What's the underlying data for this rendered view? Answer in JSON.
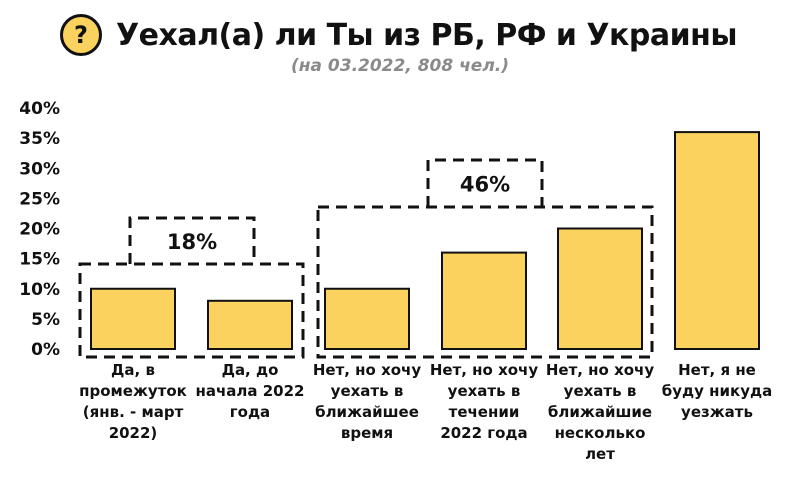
{
  "header": {
    "icon": "question-mark-icon",
    "icon_glyph": "?",
    "title": "Уехал(а) ли Ты из РБ, РФ и Украины",
    "subtitle": "(на 03.2022, 808 чел.)"
  },
  "colors": {
    "bar_fill": "#fcd25e",
    "bar_stroke": "#111111",
    "icon_fill": "#fcd25e",
    "subtitle": "#8a8a8a"
  },
  "chart_data": {
    "type": "bar",
    "title": "Уехал(а) ли Ты из РБ, РФ и Украины",
    "subtitle": "(на 03.2022, 808 чел.)",
    "xlabel": "",
    "ylabel": "",
    "ylim": [
      0,
      40
    ],
    "yticks": [
      "0%",
      "5%",
      "10%",
      "15%",
      "20%",
      "25%",
      "30%",
      "35%",
      "40%"
    ],
    "grid": false,
    "categories": [
      "Да, в промежуток (янв. - март 2022)",
      "Да, до начала 2022 года",
      "Нет, но хочу уехать в ближайшее время",
      "Нет, но хочу уехать в течении 2022 года",
      "Нет, но хочу уехать в ближайшие несколько лет",
      "Нет, я не буду никуда уезжать"
    ],
    "category_lines": [
      [
        "Да, в",
        "промежуток",
        "(янв. - март",
        "2022)"
      ],
      [
        "Да, до",
        "начала 2022",
        "года"
      ],
      [
        "Нет, но хочу",
        "уехать в",
        "ближайшее",
        "время"
      ],
      [
        "Нет, но хочу",
        "уехать в",
        "течении",
        "2022 года"
      ],
      [
        "Нет, но хочу",
        "уехать в",
        "ближайшие",
        "несколько",
        "лет"
      ],
      [
        "Нет, я не",
        "буду никуда",
        "уезжать"
      ]
    ],
    "values": [
      10,
      8,
      10,
      16,
      20,
      36
    ],
    "groups": [
      {
        "label": "18%",
        "members": [
          0,
          1
        ]
      },
      {
        "label": "46%",
        "members": [
          2,
          3,
          4
        ]
      }
    ]
  }
}
